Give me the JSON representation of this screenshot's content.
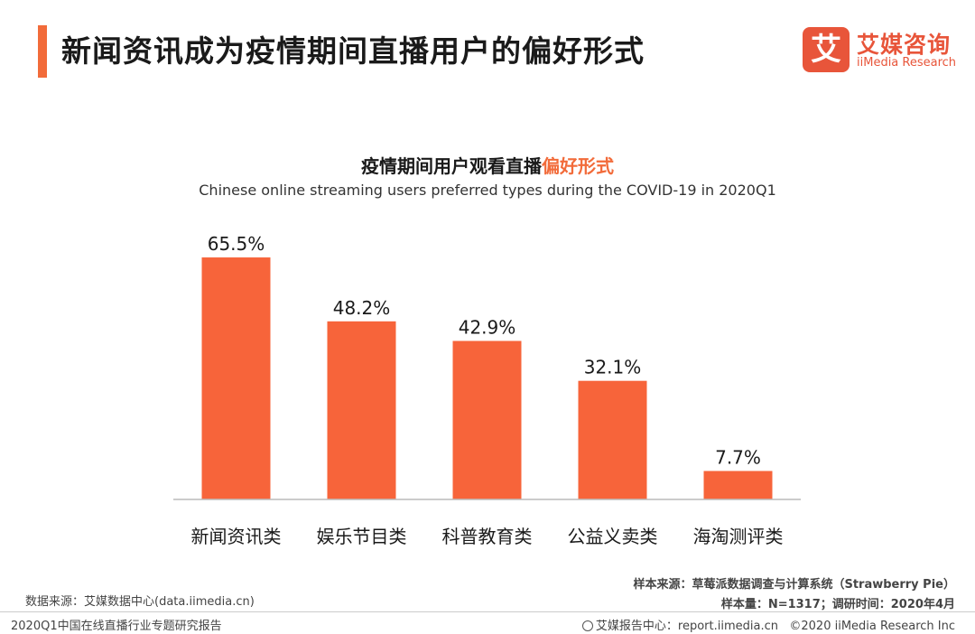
{
  "header": {
    "title": "新闻资讯成为疫情期间直播用户的偏好形式",
    "logo_mark": "艾",
    "logo_cn": "艾媒咨询",
    "logo_en": "iiMedia Research"
  },
  "colors": {
    "accent": "#f26b3a",
    "bar": "#f7643a",
    "axis": "#bbbbbb"
  },
  "chart_data": {
    "type": "bar",
    "title_main": "疫情期间用户观看直播",
    "title_highlight": "偏好形式",
    "subtitle": "Chinese online streaming users preferred types during the COVID-19 in 2020Q1",
    "categories": [
      "新闻资讯类",
      "娱乐节目类",
      "科普教育类",
      "公益义卖类",
      "海淘测评类"
    ],
    "values": [
      65.5,
      48.2,
      42.9,
      32.1,
      7.7
    ],
    "labels": [
      "65.5%",
      "48.2%",
      "42.9%",
      "32.1%",
      "7.7%"
    ],
    "unit": "%",
    "ylim": [
      0,
      66
    ],
    "grid": false,
    "legend": "none"
  },
  "footer": {
    "source_left": "数据来源：艾媒数据中心(data.iimedia.cn)",
    "report_name": "2020Q1中国在线直播行业专题研究报告",
    "sample_source": "样本来源：草莓派数据调查与计算系统（Strawberry Pie）",
    "sample_size": "样本量：N=1317；调研时间：2020年4月",
    "report_center": "艾媒报告中心：report.iimedia.cn",
    "copyright": "©2020  iiMedia Research  Inc"
  }
}
